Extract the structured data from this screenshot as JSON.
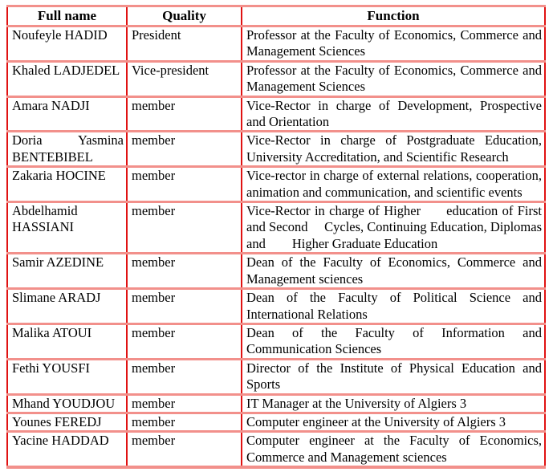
{
  "table": {
    "columns": [
      {
        "key": "name",
        "label": "Full name"
      },
      {
        "key": "quality",
        "label": "Quality"
      },
      {
        "key": "function",
        "label": "Function"
      }
    ],
    "rows": [
      {
        "name": "Noufeyle HADID",
        "quality": "President",
        "function": "Professor at the Faculty of Economics, Commerce and Management Sciences"
      },
      {
        "name": "Khaled LADJEDEL",
        "quality": "Vice-president",
        "function": "Professor at the Faculty of Economics, Commerce and Management Sciences"
      },
      {
        "name": "Amara NADJI",
        "quality": "member",
        "function": "Vice-Rector in charge of Development, Prospective and Orientation"
      },
      {
        "name": "Doria Yasmina BENTEBIBEL",
        "quality": "member",
        "function": "Vice-Rector in charge of Postgraduate Education, University Accreditation, and Scientific Research"
      },
      {
        "name": "Zakaria HOCINE",
        "quality": "member",
        "function": "Vice-rector in charge of external relations, cooperation, animation and communication, and scientific events"
      },
      {
        "name": "Abdelhamid HASSIANI",
        "quality": "member",
        "function": "Vice-Rector in charge of Higher      education of First and Second     Cycles, Continuing Education, Diplomas and        Higher Graduate Education"
      },
      {
        "name": "Samir AZEDINE",
        "quality": "member",
        "function": "Dean of the Faculty of Economics, Commerce and Management sciences"
      },
      {
        "name": "Slimane ARADJ",
        "quality": "member",
        "function": "Dean of the Faculty of Political Science and International Relations"
      },
      {
        "name": "Malika ATOUI",
        "quality": "member",
        "function": "Dean of the Faculty of Information and Communication Sciences"
      },
      {
        "name": "Fethi YOUSFI",
        "quality": "member",
        "function": "Director of the Institute of Physical Education and Sports"
      },
      {
        "name": "Mhand YOUDJOU",
        "quality": "member",
        "function": "IT Manager at the University of Algiers 3"
      },
      {
        "name": "Younes FEREDJ",
        "quality": "member",
        "function": "Computer engineer at the University of Algiers 3"
      },
      {
        "name": "Yacine HADDAD",
        "quality": "member",
        "function": "Computer engineer at the Faculty of Economics, Commerce and Management sciences"
      }
    ]
  },
  "colors": {
    "horizontal_border": "#f2908b",
    "vertical_border": "#e01212",
    "text": "#000000",
    "background": "#ffffff"
  }
}
